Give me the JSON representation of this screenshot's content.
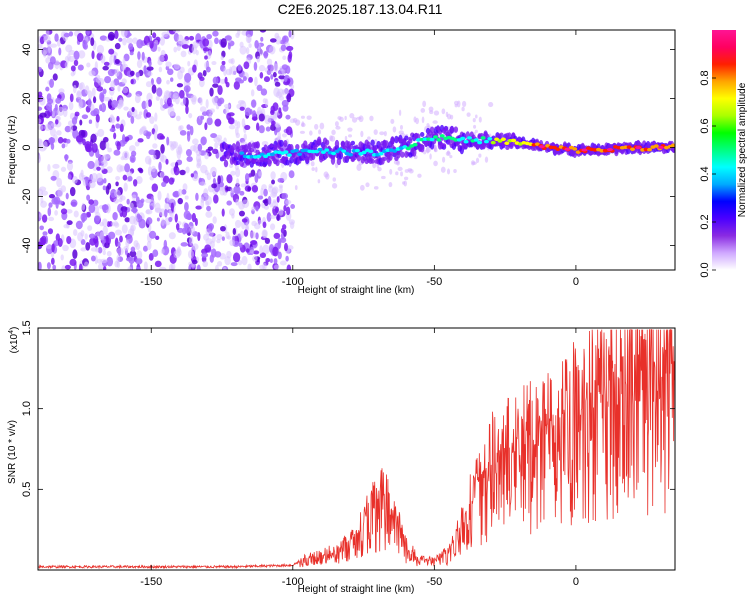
{
  "title": "C2E6.2025.187.13.04.R11",
  "chart_data": [
    {
      "type": "heatmap",
      "xlabel": "Height of straight line (km)",
      "ylabel": "Frequency (Hz)",
      "xlim": [
        -190,
        35
      ],
      "ylim": [
        -50,
        48
      ],
      "x_ticks": [
        -150,
        -100,
        -50,
        0
      ],
      "y_ticks": [
        -40,
        -20,
        0,
        20,
        40
      ],
      "colorbar": {
        "label": "Normalized spectral amplitude",
        "range": [
          0,
          1
        ],
        "ticks": [
          "0.0",
          "0.2",
          "0.4",
          "0.6",
          "0.8"
        ],
        "colors": [
          "#ffffff",
          "#cfa8ff",
          "#8a2be2",
          "#4b00ff",
          "#0000ff",
          "#00aaff",
          "#00ffff",
          "#00ff80",
          "#00ff00",
          "#aaff00",
          "#ffff00",
          "#ffa500",
          "#ff2000",
          "#ff0060",
          "#ff1493"
        ]
      },
      "ridge": [
        {
          "x": -115,
          "y": -3
        },
        {
          "x": -100,
          "y": -2
        },
        {
          "x": -90,
          "y": -1
        },
        {
          "x": -80,
          "y": -2
        },
        {
          "x": -70,
          "y": -2
        },
        {
          "x": -60,
          "y": 0
        },
        {
          "x": -55,
          "y": 3
        },
        {
          "x": -50,
          "y": 4
        },
        {
          "x": -45,
          "y": 4
        },
        {
          "x": -40,
          "y": 3
        },
        {
          "x": -30,
          "y": 3
        },
        {
          "x": -20,
          "y": 2
        },
        {
          "x": -10,
          "y": 0
        },
        {
          "x": 0,
          "y": -1
        },
        {
          "x": 10,
          "y": -1
        },
        {
          "x": 20,
          "y": 0
        },
        {
          "x": 35,
          "y": 0
        }
      ]
    },
    {
      "type": "line",
      "xlabel": "Height of straight line (km)",
      "ylabel": "SNR (10 * v/v)",
      "y_multiplier": "(x10",
      "y_multiplier_exp": "4",
      "y_multiplier_close": ")",
      "xlim": [
        -190,
        35
      ],
      "ylim": [
        0,
        1.5
      ],
      "x_ticks": [
        -150,
        -100,
        -50,
        0
      ],
      "y_ticks": [
        "0.5",
        "1.0",
        "1.5"
      ],
      "color": "#e8302a",
      "envelope": [
        {
          "x": -190,
          "y": 0.02
        },
        {
          "x": -120,
          "y": 0.02
        },
        {
          "x": -100,
          "y": 0.03
        },
        {
          "x": -95,
          "y": 0.08
        },
        {
          "x": -85,
          "y": 0.12
        },
        {
          "x": -78,
          "y": 0.22
        },
        {
          "x": -72,
          "y": 0.42
        },
        {
          "x": -68,
          "y": 0.48
        },
        {
          "x": -64,
          "y": 0.35
        },
        {
          "x": -60,
          "y": 0.15
        },
        {
          "x": -55,
          "y": 0.07
        },
        {
          "x": -50,
          "y": 0.06
        },
        {
          "x": -45,
          "y": 0.12
        },
        {
          "x": -40,
          "y": 0.32
        },
        {
          "x": -35,
          "y": 0.55
        },
        {
          "x": -30,
          "y": 0.72
        },
        {
          "x": -20,
          "y": 0.85
        },
        {
          "x": -10,
          "y": 0.92
        },
        {
          "x": 0,
          "y": 1.08
        },
        {
          "x": 10,
          "y": 1.2
        },
        {
          "x": 20,
          "y": 1.3
        },
        {
          "x": 30,
          "y": 1.4
        },
        {
          "x": 35,
          "y": 1.42
        }
      ]
    }
  ]
}
